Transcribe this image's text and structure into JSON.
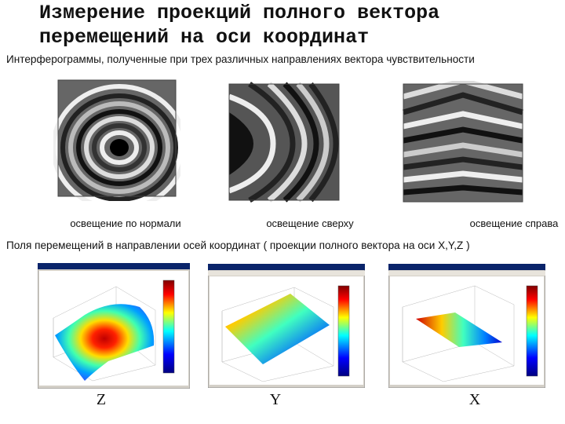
{
  "title_line1": "Измерение проекций полного вектора",
  "title_line2": "перемещений на оси координат",
  "subtitle": "Интерферограммы, полученные при трех различных направлениях вектора чувствительности",
  "interferograms": [
    {
      "caption": "освещение по нормали"
    },
    {
      "caption": "освещение сверху"
    },
    {
      "caption": "освещение справа"
    }
  ],
  "section2": "Поля перемещений в направлении осей координат ( проекции полного вектора на оси X,Y,Z )",
  "plots": [
    {
      "label": "Z"
    },
    {
      "label": "Y"
    },
    {
      "label": "X"
    }
  ]
}
